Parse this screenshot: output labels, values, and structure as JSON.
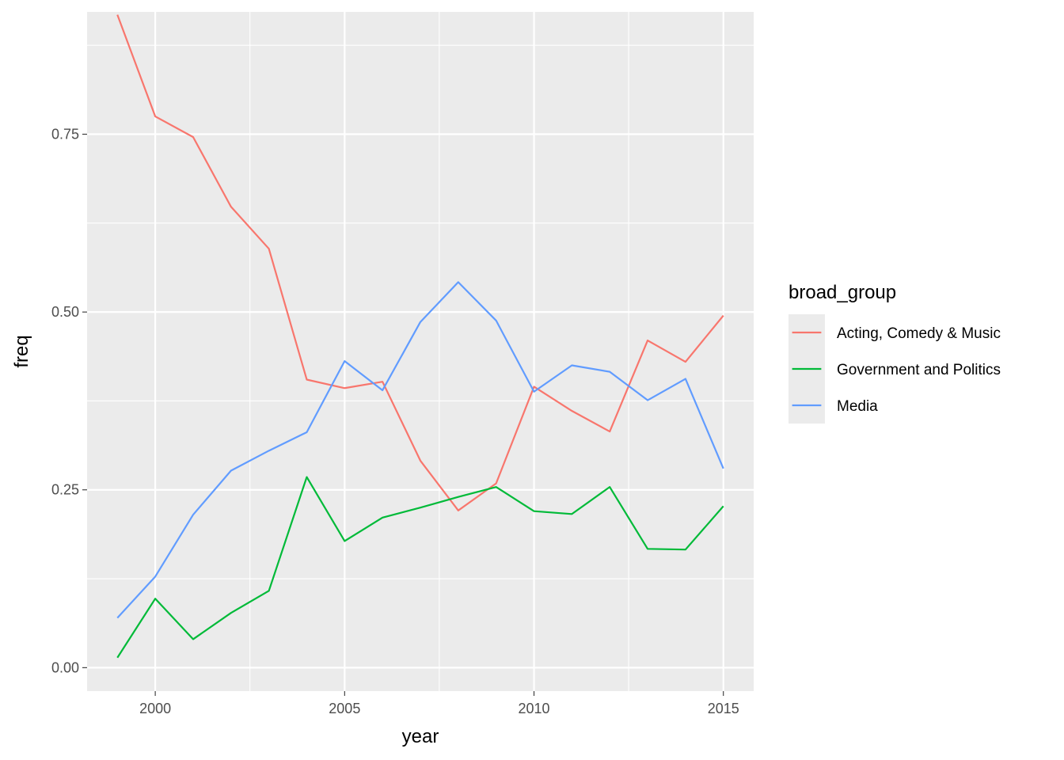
{
  "chart_data": {
    "type": "line",
    "title": "",
    "xlabel": "year",
    "ylabel": "freq",
    "x": [
      1999,
      2000,
      2001,
      2002,
      2003,
      2004,
      2005,
      2006,
      2007,
      2008,
      2009,
      2010,
      2011,
      2012,
      2013,
      2014,
      2015
    ],
    "xlim": [
      1998.2,
      2015.8
    ],
    "ylim": [
      -0.033,
      0.922
    ],
    "x_ticks": [
      2000,
      2005,
      2010,
      2015
    ],
    "x_tick_labels": [
      "2000",
      "2005",
      "2010",
      "2015"
    ],
    "y_ticks": [
      0,
      0.25,
      0.5,
      0.75
    ],
    "y_tick_labels": [
      "0.00",
      "0.25",
      "0.50",
      "0.75"
    ],
    "grid": true,
    "legend": {
      "title": "broad_group",
      "position": "right"
    },
    "series": [
      {
        "name": "Acting, Comedy & Music",
        "color": "#F8766D",
        "values": [
          0.918,
          0.775,
          0.746,
          0.648,
          0.589,
          0.405,
          0.393,
          0.402,
          0.291,
          0.221,
          0.259,
          0.395,
          0.361,
          0.332,
          0.46,
          0.43,
          0.495
        ]
      },
      {
        "name": "Government and Politics",
        "color": "#00BA38",
        "values": [
          0.014,
          0.097,
          0.04,
          0.077,
          0.108,
          0.268,
          0.178,
          0.211,
          0.225,
          0.24,
          0.254,
          0.22,
          0.216,
          0.254,
          0.167,
          0.166,
          0.227
        ]
      },
      {
        "name": "Media",
        "color": "#619CFF",
        "values": [
          0.07,
          0.128,
          0.215,
          0.277,
          0.305,
          0.331,
          0.431,
          0.39,
          0.486,
          0.542,
          0.488,
          0.388,
          0.425,
          0.416,
          0.376,
          0.406,
          0.28
        ]
      }
    ]
  }
}
